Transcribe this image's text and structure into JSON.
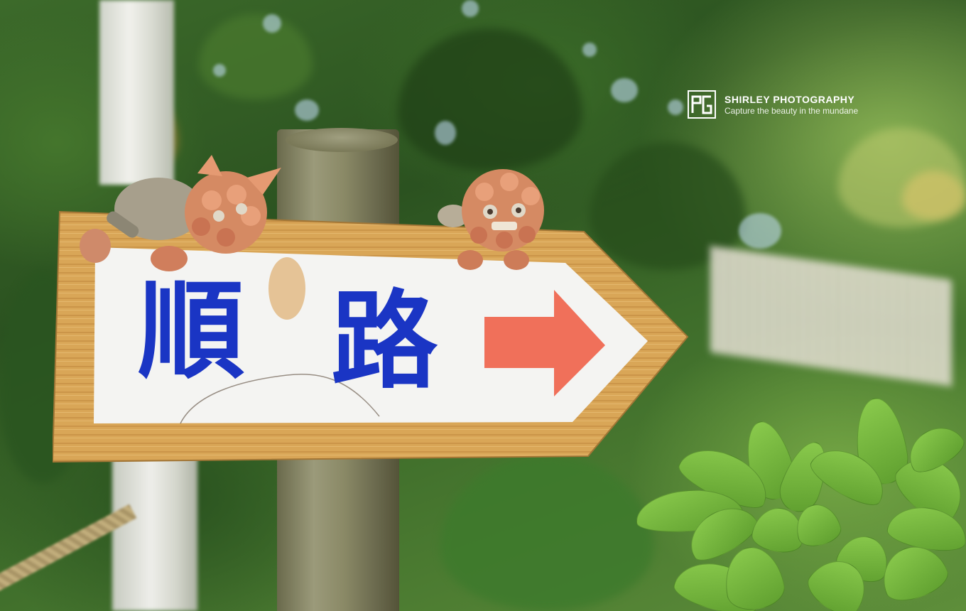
{
  "photo": {
    "subject": "wooden directional sign on a post with shisa figurines",
    "sign": {
      "text_char_1": "順",
      "text_char_2": "路",
      "text_color": "#1a35c4",
      "arrow_direction": "right",
      "arrow_color": "#f0705a",
      "frame_color": "#d9a657",
      "panel_color": "#f4f4f2"
    },
    "watermark": {
      "title": "SHIRLEY PHOTOGRAPHY",
      "tagline": "Capture the beauty in the mundane",
      "logo_icon": "rg-monogram-icon"
    }
  }
}
